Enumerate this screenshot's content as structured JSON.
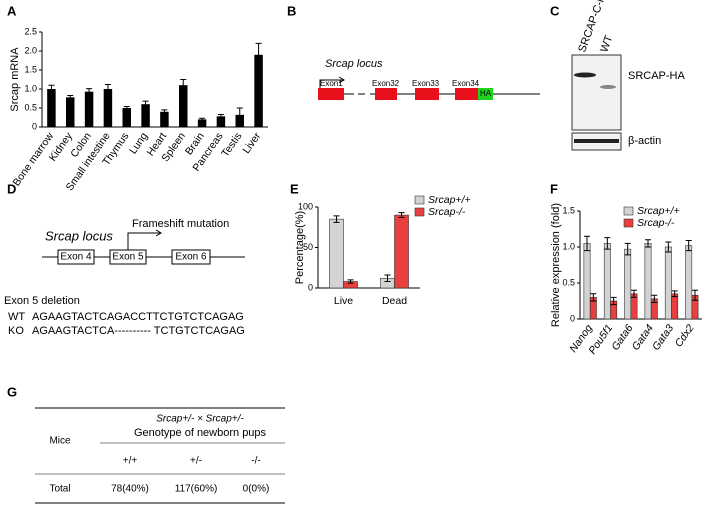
{
  "panel_labels": [
    "A",
    "B",
    "C",
    "D",
    "E",
    "F",
    "G"
  ],
  "chart_data": [
    {
      "type": "bar",
      "ylabel": "Srcap mRNA",
      "categories": [
        "Bone marrow",
        "Kidney",
        "Colon",
        "Small intestine",
        "Thymus",
        "Lung",
        "Heart",
        "Spleen",
        "Brain",
        "Pancreas",
        "Testis",
        "Liver"
      ],
      "values": [
        1.0,
        0.78,
        0.93,
        1.0,
        0.5,
        0.6,
        0.4,
        1.1,
        0.2,
        0.28,
        0.32,
        1.9
      ],
      "errors": [
        0.1,
        0.05,
        0.08,
        0.12,
        0.04,
        0.08,
        0.05,
        0.15,
        0.03,
        0.05,
        0.18,
        0.3
      ],
      "color": "#000000",
      "ylim": [
        0,
        2.5
      ],
      "yticks": [
        0,
        0.5,
        {
          "value": 1,
          "label": "1.0"
        },
        1.5,
        {
          "value": 2,
          "label": "2.0"
        },
        2.5
      ]
    },
    {
      "type": "grouped_bar",
      "ylabel": "Percentage(%)",
      "categories": [
        "Live",
        "Dead"
      ],
      "series": [
        {
          "name": "Srcap+/+",
          "color": "#d3d3d3",
          "values": [
            85,
            12
          ],
          "errors": [
            4,
            4
          ]
        },
        {
          "name": "Srcap-/-",
          "color": "#e8403f",
          "values": [
            8,
            90
          ],
          "errors": [
            2,
            3
          ]
        }
      ],
      "ylim": [
        0,
        100
      ],
      "yticks": [
        0,
        50,
        100
      ]
    },
    {
      "type": "grouped_bar",
      "ylabel": "Relative expression (fold)",
      "categories": [
        "Nanog",
        "Pou5f1",
        "Gata6",
        "Gata4",
        "Gata3",
        "Cdx2"
      ],
      "series": [
        {
          "name": "Srcap+/+",
          "color": "#d3d3d3",
          "values": [
            1.05,
            1.05,
            0.97,
            1.05,
            1.0,
            1.02
          ],
          "errors": [
            0.1,
            0.08,
            0.08,
            0.05,
            0.07,
            0.07
          ]
        },
        {
          "name": "Srcap-/-",
          "color": "#e8403f",
          "values": [
            0.3,
            0.25,
            0.35,
            0.28,
            0.35,
            0.33
          ],
          "errors": [
            0.05,
            0.05,
            0.05,
            0.05,
            0.04,
            0.07
          ]
        }
      ],
      "ylim": [
        0,
        1.5
      ],
      "yticks": [
        0,
        0.5,
        {
          "value": 1,
          "label": "1.0"
        },
        1.5
      ]
    }
  ],
  "panel_b": {
    "locus_label": "Srcap locus",
    "exons": [
      "Exon1",
      "Exon32",
      "Exon33",
      "Exon34"
    ],
    "tag": "HA"
  },
  "panel_c": {
    "lanes": [
      "SRCAP-C-HA",
      "WT"
    ],
    "bands": [
      "SRCAP-HA",
      "β-actin"
    ]
  },
  "panel_d": {
    "locus_label": "Srcap locus",
    "annotation": "Frameshift mutation",
    "exons": [
      "Exon 4",
      "Exon 5",
      "Exon 6"
    ],
    "deletion_title": "Exon 5 deletion",
    "sequences": [
      [
        "WT",
        "AGAAGTACTCAGACCTTCTGTCTCAGAG"
      ],
      [
        "KO",
        "AGAAGTACTCA---------- TCTGTCTCAGAG"
      ]
    ]
  },
  "table": {
    "cross": "Srcap+/- × Srcap+/-",
    "subtitle": "Genotype of newborn pups",
    "row_header": "Mice",
    "columns": [
      "+/+",
      "+/-",
      "-/-"
    ],
    "rows": [
      [
        "Total",
        "78(40%)",
        "117(60%)",
        "0(0%)"
      ]
    ]
  }
}
